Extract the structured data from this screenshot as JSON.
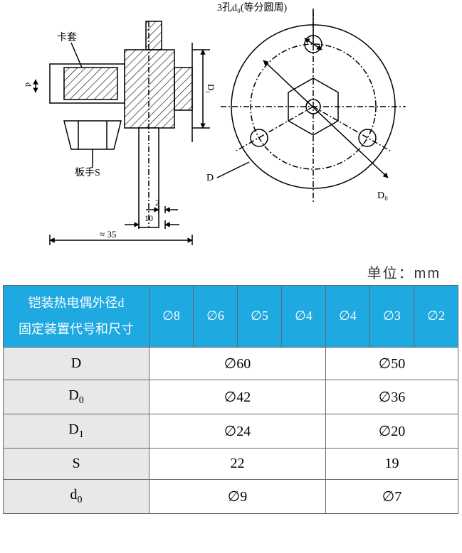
{
  "diagram": {
    "labels": {
      "top_note": "3孔d₀(等分圆周)",
      "left_note": "卡套",
      "wrench": "板手S",
      "dim_small": "2",
      "dim_mid": "10",
      "dim_long": "≈ 35",
      "flange_D": "D",
      "flange_D0": "D₀",
      "flange_D1": "D₁",
      "vertical_d": "d"
    },
    "colors": {
      "stroke": "#000000",
      "hatch": "#000000",
      "centerline": "#000000"
    }
  },
  "unit_text": "单位：mm",
  "table": {
    "header_row1": "铠装热电偶外径d",
    "header_row2": "固定装置代号和尺寸",
    "header_cols": [
      "∅8",
      "∅6",
      "∅5",
      "∅4",
      "∅4",
      "∅3",
      "∅2"
    ],
    "rows": [
      {
        "label": "D",
        "group1": "∅60",
        "group2": "∅50"
      },
      {
        "label": "D0",
        "label_html": "D<span class='sub'>0</span>",
        "group1": "∅42",
        "group2": "∅36"
      },
      {
        "label": "D1",
        "label_html": "D<span class='sub'>1</span>",
        "group1": "∅24",
        "group2": "∅20"
      },
      {
        "label": "S",
        "group1": "22",
        "group2": "19"
      },
      {
        "label": "d0",
        "label_html": "d<span class='sub'>0</span>",
        "group1": "∅9",
        "group2": "∅7"
      }
    ],
    "styling": {
      "header_bg": "#1ea9e1",
      "header_fg": "#ffffff",
      "label_bg": "#e8e8e8",
      "cell_bg": "#ffffff",
      "border": "#666666",
      "font_label": "Times New Roman",
      "font_size_header": 18,
      "font_size_cell": 20,
      "col_group1_span": 4,
      "col_group2_span": 3
    }
  }
}
